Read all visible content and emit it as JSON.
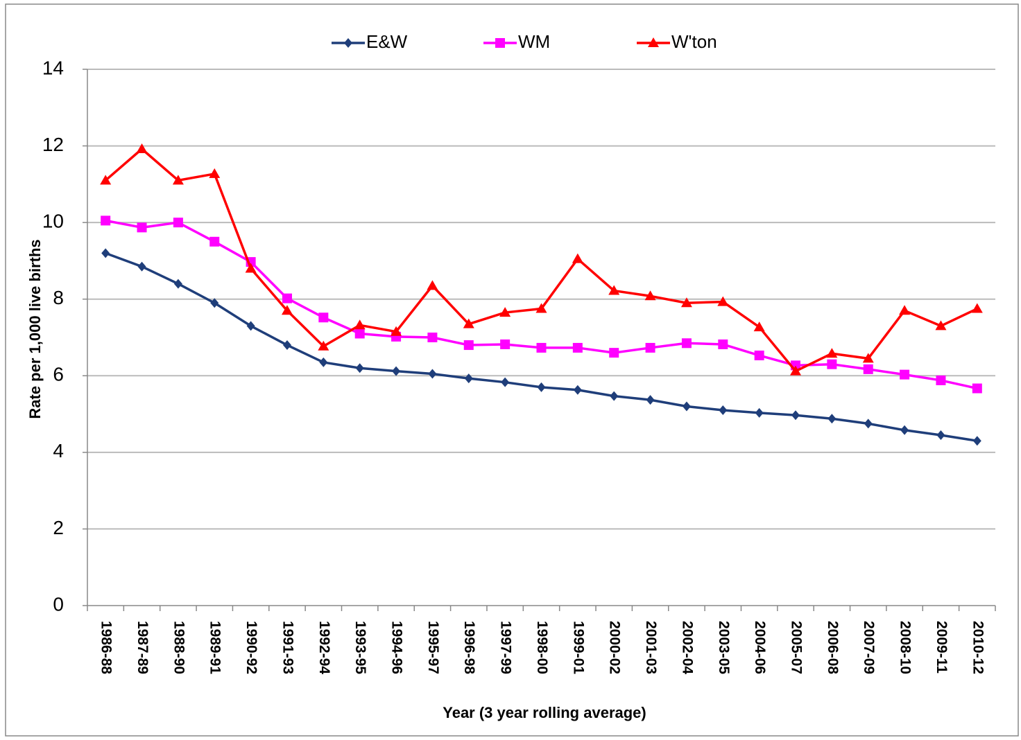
{
  "chart_data": {
    "type": "line",
    "y_label": "Rate per 1,000 live births",
    "x_label": "Year (3 year rolling average)",
    "categories": [
      "1986-88",
      "1987-89",
      "1988-90",
      "1989-91",
      "1990-92",
      "1991-93",
      "1992-94",
      "1993-95",
      "1994-96",
      "1995-97",
      "1996-98",
      "1997-99",
      "1998-00",
      "1999-01",
      "2000-02",
      "2001-03",
      "2002-04",
      "2003-05",
      "2004-06",
      "2005-07",
      "2006-08",
      "2007-09",
      "2008-10",
      "2009-11",
      "2010-12"
    ],
    "series": [
      {
        "name": "E&W",
        "color": "#1f3e7a",
        "marker": "diamond",
        "values": [
          9.2,
          8.85,
          8.4,
          7.9,
          7.3,
          6.8,
          6.35,
          6.2,
          6.12,
          6.05,
          5.93,
          5.83,
          5.7,
          5.63,
          5.47,
          5.37,
          5.2,
          5.1,
          5.03,
          4.97,
          4.88,
          4.75,
          4.58,
          4.45,
          4.3
        ]
      },
      {
        "name": "WM",
        "color": "#ff00ff",
        "marker": "square",
        "values": [
          10.05,
          9.87,
          10.0,
          9.5,
          8.97,
          8.02,
          7.52,
          7.1,
          7.02,
          7.0,
          6.8,
          6.82,
          6.73,
          6.73,
          6.6,
          6.73,
          6.85,
          6.82,
          6.53,
          6.27,
          6.3,
          6.17,
          6.03,
          5.88,
          5.67
        ]
      },
      {
        "name": "W'ton",
        "color": "#ff0000",
        "marker": "triangle",
        "values": [
          11.1,
          11.92,
          11.1,
          11.27,
          8.8,
          7.7,
          6.77,
          7.32,
          7.15,
          8.35,
          7.35,
          7.65,
          7.75,
          9.05,
          8.22,
          8.08,
          7.9,
          7.93,
          7.27,
          6.12,
          6.58,
          6.45,
          7.7,
          7.3,
          7.75
        ]
      }
    ],
    "ylim": [
      0,
      14
    ],
    "yticks": [
      0,
      2,
      4,
      6,
      8,
      10,
      12,
      14
    ],
    "grid": true,
    "legend": "top"
  }
}
